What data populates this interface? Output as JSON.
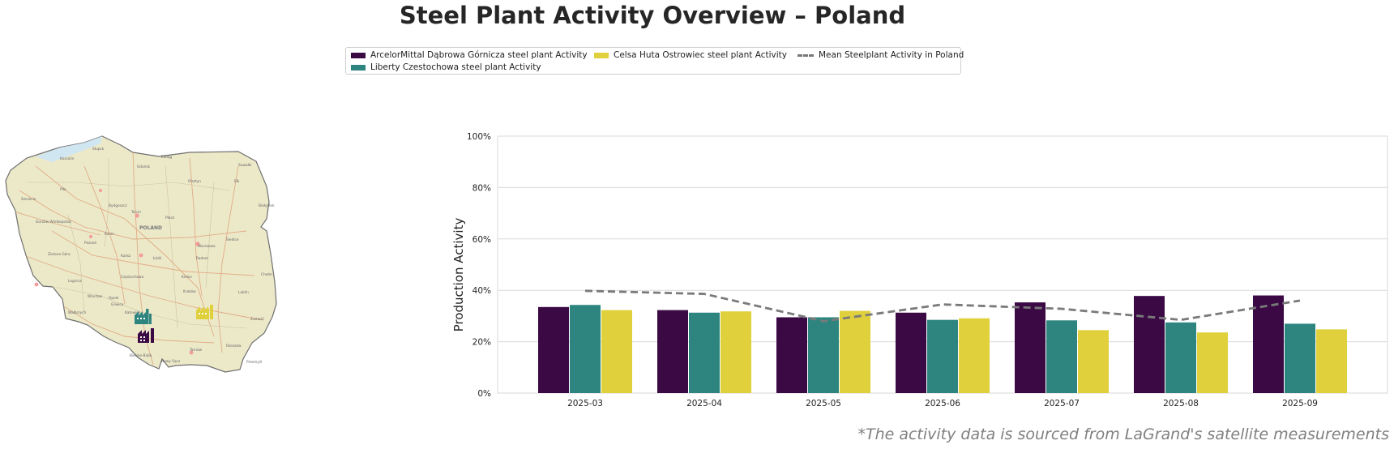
{
  "title": "Steel Plant Activity Overview – Poland",
  "source_note": "*The activity data is sourced from LaGrand's satellite measurements",
  "colors": {
    "arcelor": "#3b0a45",
    "liberty": "#2e8580",
    "celsa": "#e0d03b",
    "mean": "#7a7a7a",
    "grid": "#d9d9d9",
    "map_fill": "#ece9c9",
    "map_border": "#6f6f6f"
  },
  "map": {
    "labels": [
      "POLAND",
      "Kraków",
      "Katowice",
      "Gliwice",
      "Bielsko-Biała",
      "Częstochowa",
      "Kielce",
      "Radom",
      "Łódź",
      "Warszawa",
      "Lublin",
      "Poznań",
      "Wrocław",
      "Opole",
      "Szczecin",
      "Gdańsk",
      "Bydgoszcz",
      "Toruń",
      "Olsztyn",
      "Białystok",
      "Płock",
      "Kalisz",
      "Legnica",
      "Wałbrzych",
      "Rzeszów",
      "Tarnów",
      "Zielona Góra",
      "Gorzów Wielkopolski",
      "Koszalin",
      "Słupsk",
      "Elbląg",
      "Siedlce",
      "Zamość",
      "Przemyśl",
      "Nowy Sącz",
      "Konin",
      "Piła",
      "Suwałki",
      "Ełk",
      "Chełm"
    ],
    "plant_icons": [
      {
        "name": "ArcelorMittal Dąbrowa Górnicza steel plant",
        "icon": "factory-icon",
        "color": "#3b0a45"
      },
      {
        "name": "Liberty Czestochowa steel plant",
        "icon": "factory-icon",
        "color": "#2e8580"
      },
      {
        "name": "Celsa Huta Ostrowiec steel plant",
        "icon": "factory-icon",
        "color": "#e0d03b"
      }
    ]
  },
  "chart_data": {
    "type": "bar",
    "title": "",
    "xlabel": "",
    "ylabel": "Production Activity",
    "ylim": [
      0,
      100
    ],
    "yticks": [
      0,
      20,
      40,
      60,
      80,
      100
    ],
    "ytick_labels": [
      "0%",
      "20%",
      "40%",
      "60%",
      "80%",
      "100%"
    ],
    "grid": true,
    "legend_position": "top-center",
    "categories": [
      "2025-03",
      "2025-04",
      "2025-05",
      "2025-06",
      "2025-07",
      "2025-08",
      "2025-09"
    ],
    "series": [
      {
        "name": "ArcelorMittal Dąbrowa Górnicza steel plant Activity",
        "type": "bar",
        "color": "#3b0a45",
        "values": [
          33.5,
          32.3,
          29.5,
          31.3,
          35.3,
          37.8,
          38.0
        ]
      },
      {
        "name": "Liberty Czestochowa steel plant Activity",
        "type": "bar",
        "color": "#2e8580",
        "values": [
          34.3,
          31.3,
          29.5,
          28.5,
          28.3,
          27.5,
          27.0
        ]
      },
      {
        "name": "Celsa Huta Ostrowiec steel plant Activity",
        "type": "bar",
        "color": "#e0d03b",
        "values": [
          32.3,
          31.8,
          32.0,
          29.1,
          24.5,
          23.6,
          24.8
        ]
      },
      {
        "name": "Mean Steelplant Activity in Poland",
        "type": "line",
        "style": "dashed",
        "color": "#7a7a7a",
        "values": [
          39.8,
          38.6,
          28.0,
          34.5,
          32.8,
          28.5,
          36.0
        ]
      }
    ]
  }
}
